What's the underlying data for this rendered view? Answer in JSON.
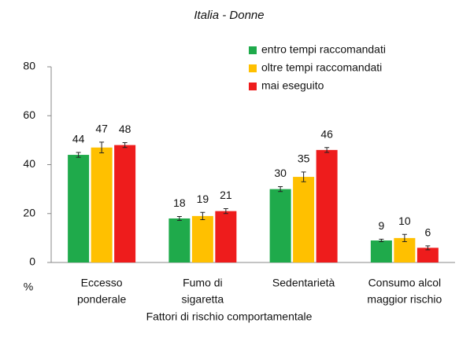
{
  "chart_data": {
    "type": "bar",
    "title": "Italia - Donne",
    "x_label": "Fattori di rischio comportamentale",
    "y_label": "%",
    "categories": [
      [
        "Eccesso",
        "ponderale"
      ],
      [
        "Fumo di",
        "sigaretta"
      ],
      [
        "Sedentarietà"
      ],
      [
        "Consumo alcol",
        "maggior rischio"
      ]
    ],
    "series": [
      {
        "name": "entro tempi raccomandati",
        "color": "#1faa4b",
        "values": [
          44,
          18,
          30,
          9
        ],
        "errors": [
          1,
          0.8,
          1,
          0.5
        ]
      },
      {
        "name": "oltre tempi raccomandati",
        "color": "#ffc000",
        "values": [
          47,
          19,
          35,
          10
        ],
        "errors": [
          2.2,
          1.5,
          2,
          1.5
        ]
      },
      {
        "name": "mai eseguito",
        "color": "#ee1c1c",
        "values": [
          48,
          21,
          46,
          6
        ],
        "errors": [
          1,
          1,
          1,
          0.8
        ]
      }
    ],
    "ylim": [
      0,
      80
    ],
    "yticks": [
      0,
      20,
      40,
      60,
      80
    ],
    "legend": "top-right"
  }
}
